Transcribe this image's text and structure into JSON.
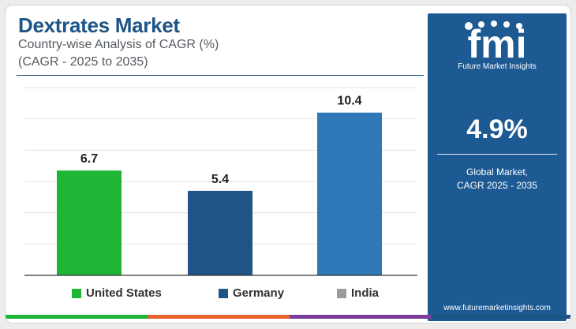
{
  "header": {
    "title": "Dextrates Market",
    "subtitle_line1": "Country-wise Analysis of CAGR (%)",
    "subtitle_line2": "(CAGR - 2025 to 2035)"
  },
  "chart_data": {
    "type": "bar",
    "categories": [
      "United States",
      "Germany",
      "India"
    ],
    "values": [
      6.7,
      5.4,
      10.4
    ],
    "value_labels": [
      "6.7",
      "5.4",
      "10.4"
    ],
    "colors": [
      "#1fb536",
      "#1e5486",
      "#2e78b8"
    ],
    "legend_colors": [
      "#1fb536",
      "#1e5486",
      "#9a9a9a"
    ],
    "ylim": [
      0,
      12
    ],
    "grid": true,
    "legend_placement": "bottom",
    "title": "Dextrates Market",
    "xlabel": "",
    "ylabel": ""
  },
  "legend": {
    "items": [
      {
        "label": "United States",
        "color": "#1fb536"
      },
      {
        "label": "Germany",
        "color": "#1e5486"
      },
      {
        "label": "India",
        "color": "#9a9a9a"
      }
    ]
  },
  "panel": {
    "logo_text": "fmi",
    "company_name": "Future Market Insights",
    "metric_value": "4.9%",
    "metric_label_line1": "Global Market,",
    "metric_label_line2": "CAGR 2025 - 2035",
    "website": "www.futuremarketinsights.com",
    "background_color": "#1d5a93"
  },
  "bottom_strip_colors": [
    "#1fb536",
    "#e8642a",
    "#7a3d9a",
    "#1e5486"
  ]
}
